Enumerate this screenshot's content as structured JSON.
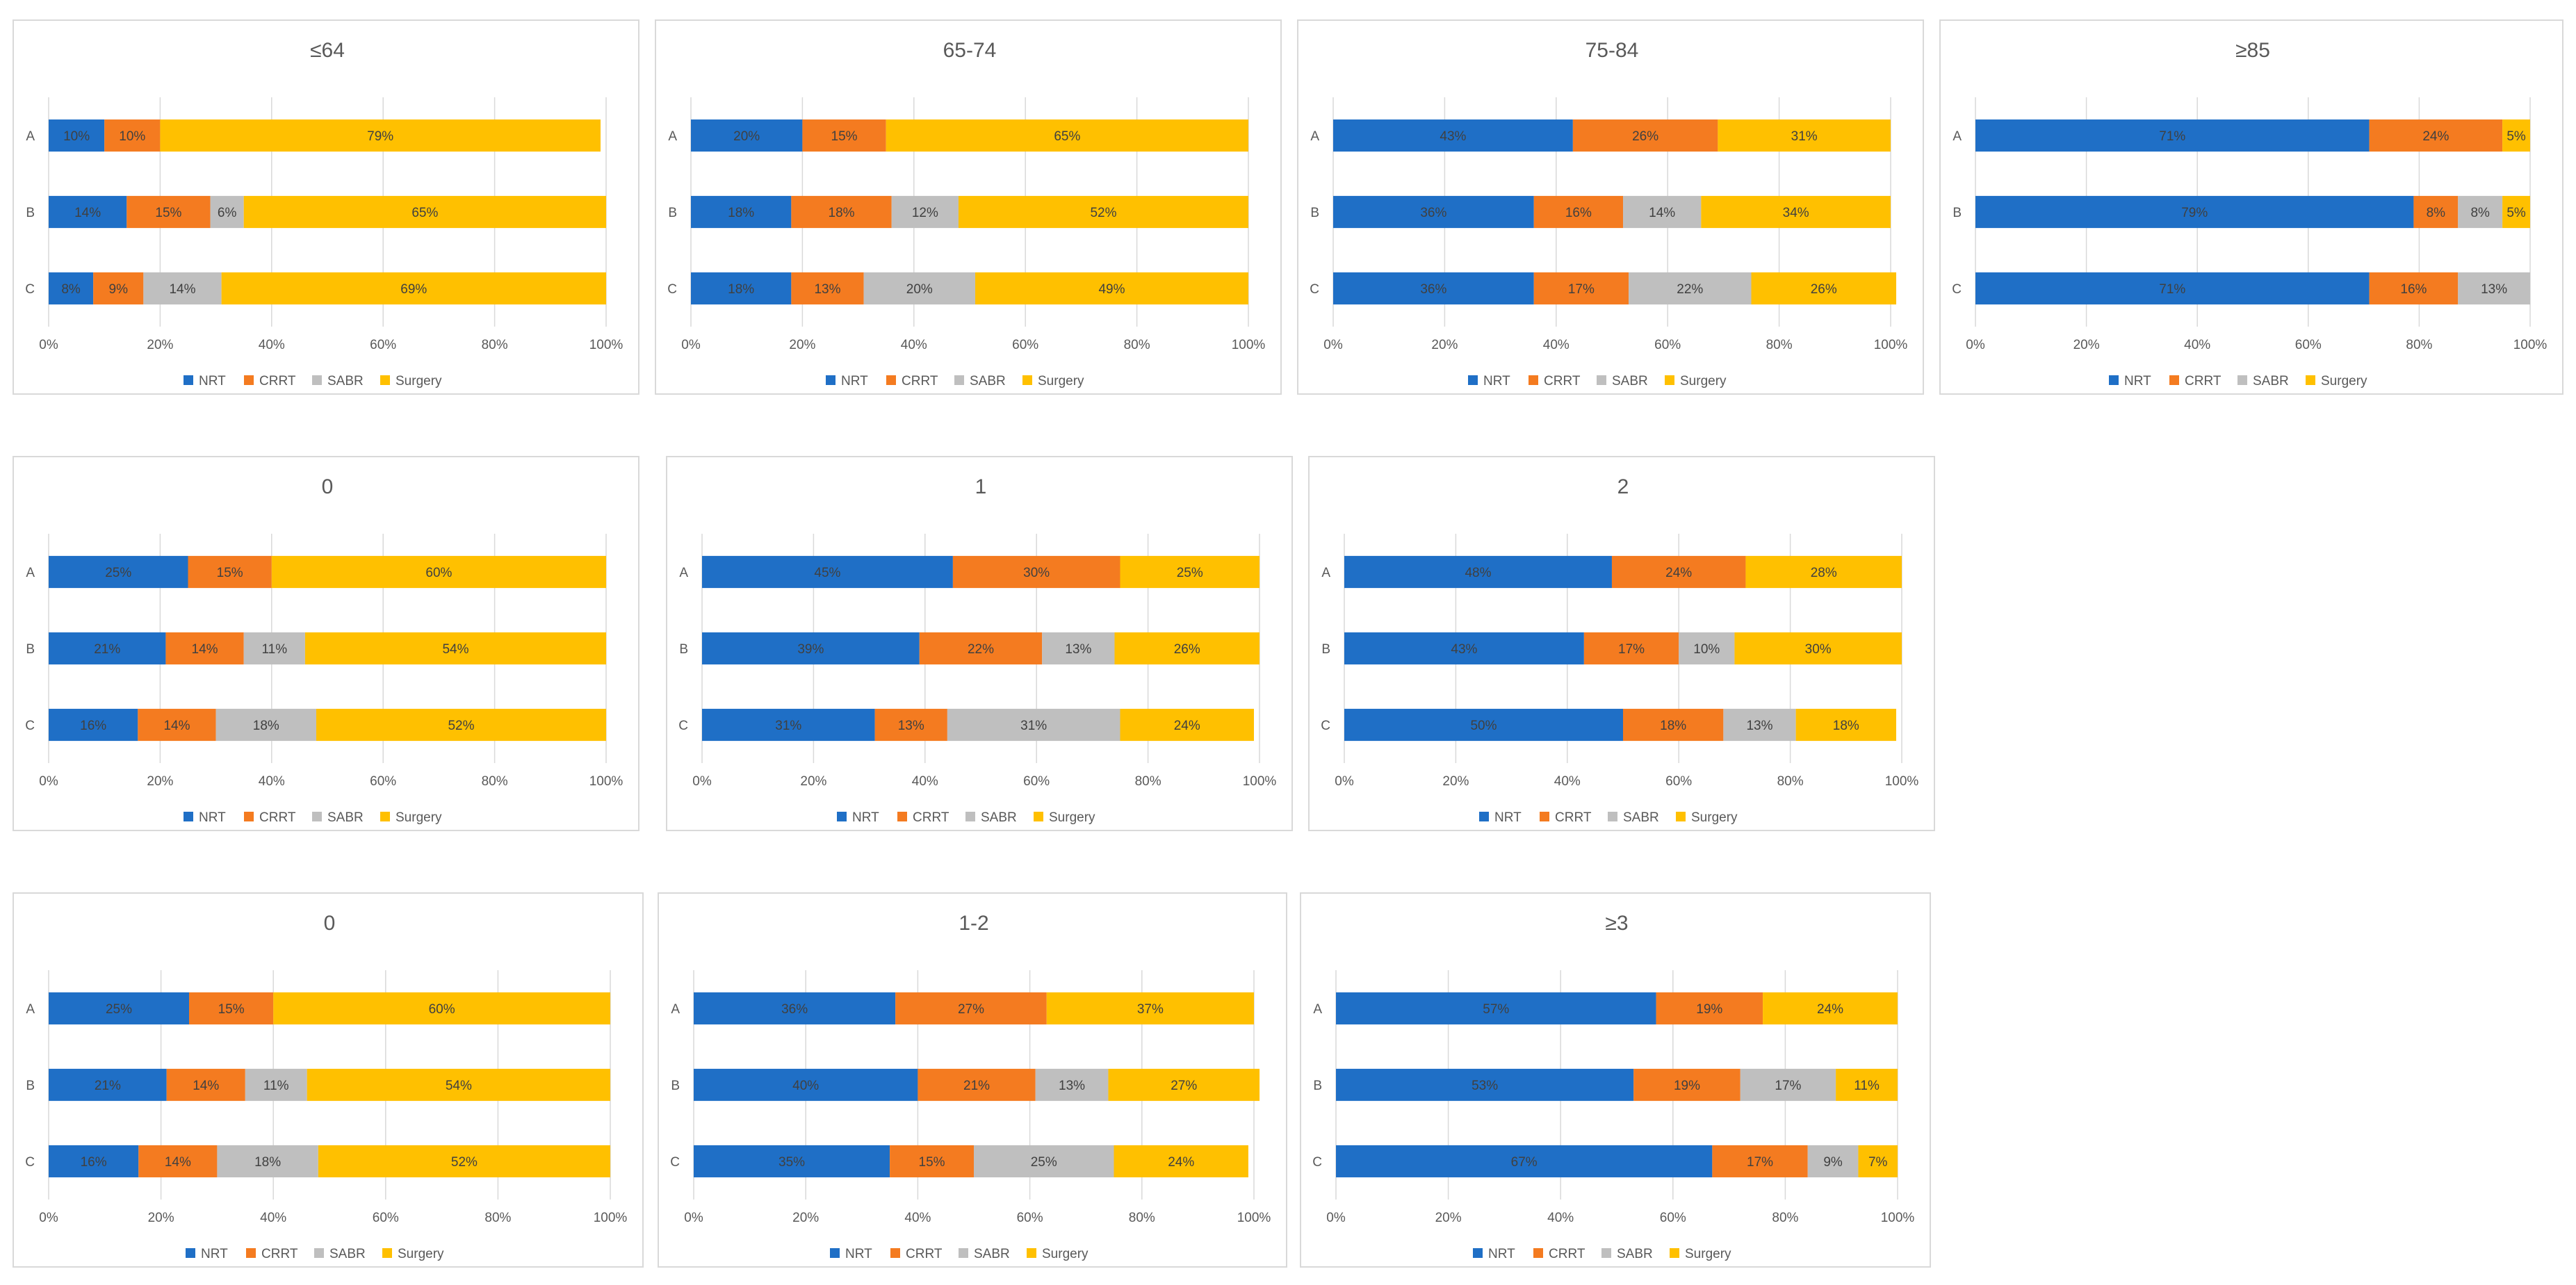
{
  "colors": {
    "NRT": "#1f6fc6",
    "CRRT": "#f47b20",
    "SABR": "#bfbfbf",
    "Surgery": "#ffc000"
  },
  "legend": [
    "NRT",
    "CRRT",
    "SABR",
    "Surgery"
  ],
  "chart_data": [
    {
      "type": "bar",
      "orientation": "horizontal",
      "stacked": true,
      "title": "≤64",
      "categories": [
        "A",
        "B",
        "C"
      ],
      "xlim": [
        0,
        100
      ],
      "xticks": [
        "0%",
        "20%",
        "40%",
        "60%",
        "80%",
        "100%"
      ],
      "series": [
        {
          "name": "NRT",
          "values": [
            10,
            14,
            8
          ]
        },
        {
          "name": "CRRT",
          "values": [
            10,
            15,
            9
          ]
        },
        {
          "name": "SABR",
          "values": [
            0,
            6,
            14
          ]
        },
        {
          "name": "Surgery",
          "values": [
            79,
            65,
            69
          ]
        }
      ]
    },
    {
      "type": "bar",
      "orientation": "horizontal",
      "stacked": true,
      "title": "65-74",
      "categories": [
        "A",
        "B",
        "C"
      ],
      "xlim": [
        0,
        100
      ],
      "xticks": [
        "0%",
        "20%",
        "40%",
        "60%",
        "80%",
        "100%"
      ],
      "series": [
        {
          "name": "NRT",
          "values": [
            20,
            18,
            18
          ]
        },
        {
          "name": "CRRT",
          "values": [
            15,
            18,
            13
          ]
        },
        {
          "name": "SABR",
          "values": [
            0,
            12,
            20
          ]
        },
        {
          "name": "Surgery",
          "values": [
            65,
            52,
            49
          ]
        }
      ]
    },
    {
      "type": "bar",
      "orientation": "horizontal",
      "stacked": true,
      "title": "75-84",
      "categories": [
        "A",
        "B",
        "C"
      ],
      "xlim": [
        0,
        100
      ],
      "xticks": [
        "0%",
        "20%",
        "40%",
        "60%",
        "80%",
        "100%"
      ],
      "series": [
        {
          "name": "NRT",
          "values": [
            43,
            36,
            36
          ]
        },
        {
          "name": "CRRT",
          "values": [
            26,
            16,
            17
          ]
        },
        {
          "name": "SABR",
          "values": [
            0,
            14,
            22
          ]
        },
        {
          "name": "Surgery",
          "values": [
            31,
            34,
            26
          ]
        }
      ]
    },
    {
      "type": "bar",
      "orientation": "horizontal",
      "stacked": true,
      "title": "≥85",
      "categories": [
        "A",
        "B",
        "C"
      ],
      "xlim": [
        0,
        100
      ],
      "xticks": [
        "0%",
        "20%",
        "40%",
        "60%",
        "80%",
        "100%"
      ],
      "series": [
        {
          "name": "NRT",
          "values": [
            71,
            79,
            71
          ]
        },
        {
          "name": "CRRT",
          "values": [
            24,
            8,
            16
          ]
        },
        {
          "name": "SABR",
          "values": [
            0,
            8,
            13
          ]
        },
        {
          "name": "Surgery",
          "values": [
            5,
            5,
            0
          ]
        }
      ]
    },
    {
      "type": "bar",
      "orientation": "horizontal",
      "stacked": true,
      "title": "0",
      "categories": [
        "A",
        "B",
        "C"
      ],
      "xlim": [
        0,
        100
      ],
      "xticks": [
        "0%",
        "20%",
        "40%",
        "60%",
        "80%",
        "100%"
      ],
      "series": [
        {
          "name": "NRT",
          "values": [
            25,
            21,
            16
          ]
        },
        {
          "name": "CRRT",
          "values": [
            15,
            14,
            14
          ]
        },
        {
          "name": "SABR",
          "values": [
            0,
            11,
            18
          ]
        },
        {
          "name": "Surgery",
          "values": [
            60,
            54,
            52
          ]
        }
      ]
    },
    {
      "type": "bar",
      "orientation": "horizontal",
      "stacked": true,
      "title": "1",
      "categories": [
        "A",
        "B",
        "C"
      ],
      "xlim": [
        0,
        100
      ],
      "xticks": [
        "0%",
        "20%",
        "40%",
        "60%",
        "80%",
        "100%"
      ],
      "series": [
        {
          "name": "NRT",
          "values": [
            45,
            39,
            31
          ]
        },
        {
          "name": "CRRT",
          "values": [
            30,
            22,
            13
          ]
        },
        {
          "name": "SABR",
          "values": [
            0,
            13,
            31
          ]
        },
        {
          "name": "Surgery",
          "values": [
            25,
            26,
            24
          ]
        }
      ]
    },
    {
      "type": "bar",
      "orientation": "horizontal",
      "stacked": true,
      "title": "2",
      "categories": [
        "A",
        "B",
        "C"
      ],
      "xlim": [
        0,
        100
      ],
      "xticks": [
        "0%",
        "20%",
        "40%",
        "60%",
        "80%",
        "100%"
      ],
      "series": [
        {
          "name": "NRT",
          "values": [
            48,
            43,
            50
          ]
        },
        {
          "name": "CRRT",
          "values": [
            24,
            17,
            18
          ]
        },
        {
          "name": "SABR",
          "values": [
            0,
            10,
            13
          ]
        },
        {
          "name": "Surgery",
          "values": [
            28,
            30,
            18
          ]
        }
      ]
    },
    {
      "type": "bar",
      "orientation": "horizontal",
      "stacked": true,
      "title": "0",
      "categories": [
        "A",
        "B",
        "C"
      ],
      "xlim": [
        0,
        100
      ],
      "xticks": [
        "0%",
        "20%",
        "40%",
        "60%",
        "80%",
        "100%"
      ],
      "series": [
        {
          "name": "NRT",
          "values": [
            25,
            21,
            16
          ]
        },
        {
          "name": "CRRT",
          "values": [
            15,
            14,
            14
          ]
        },
        {
          "name": "SABR",
          "values": [
            0,
            11,
            18
          ]
        },
        {
          "name": "Surgery",
          "values": [
            60,
            54,
            52
          ]
        }
      ]
    },
    {
      "type": "bar",
      "orientation": "horizontal",
      "stacked": true,
      "title": "1-2",
      "categories": [
        "A",
        "B",
        "C"
      ],
      "xlim": [
        0,
        100
      ],
      "xticks": [
        "0%",
        "20%",
        "40%",
        "60%",
        "80%",
        "100%"
      ],
      "series": [
        {
          "name": "NRT",
          "values": [
            36,
            40,
            35
          ]
        },
        {
          "name": "CRRT",
          "values": [
            27,
            21,
            15
          ]
        },
        {
          "name": "SABR",
          "values": [
            0,
            13,
            25
          ]
        },
        {
          "name": "Surgery",
          "values": [
            37,
            27,
            24
          ]
        }
      ]
    },
    {
      "type": "bar",
      "orientation": "horizontal",
      "stacked": true,
      "title": "≥3",
      "categories": [
        "A",
        "B",
        "C"
      ],
      "xlim": [
        0,
        100
      ],
      "xticks": [
        "0%",
        "20%",
        "40%",
        "60%",
        "80%",
        "100%"
      ],
      "series": [
        {
          "name": "NRT",
          "values": [
            57,
            53,
            67
          ]
        },
        {
          "name": "CRRT",
          "values": [
            19,
            19,
            17
          ]
        },
        {
          "name": "SABR",
          "values": [
            0,
            17,
            9
          ]
        },
        {
          "name": "Surgery",
          "values": [
            24,
            11,
            7
          ]
        }
      ]
    }
  ]
}
